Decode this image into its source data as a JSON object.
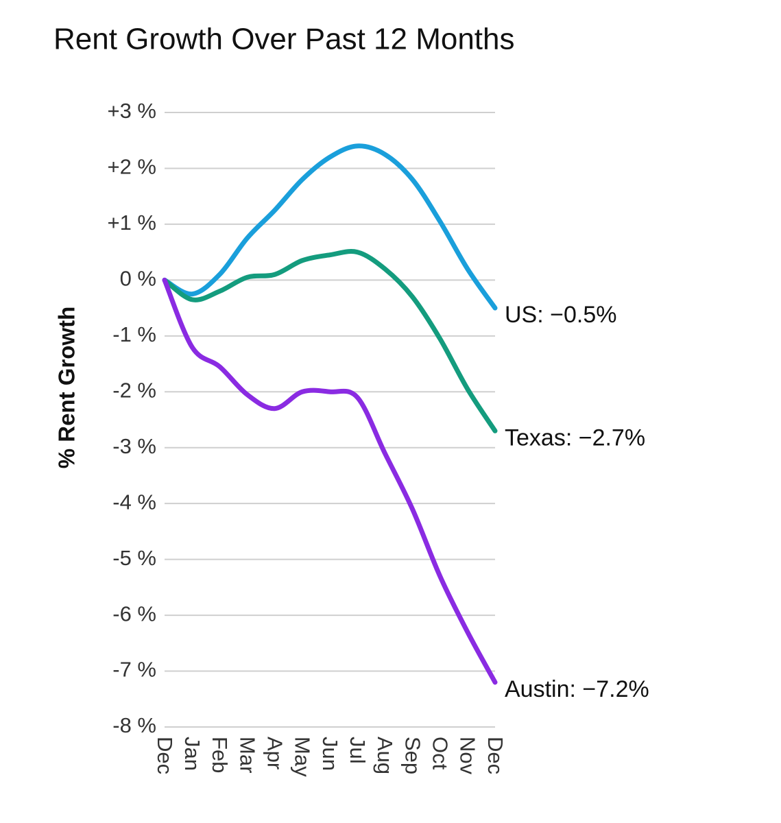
{
  "chart_data": {
    "type": "line",
    "title": "Rent Growth Over Past 12 Months",
    "y_label": "% Rent Growth",
    "categories": [
      "Dec",
      "Jan",
      "Feb",
      "Mar",
      "Apr",
      "May",
      "Jun",
      "Jul",
      "Aug",
      "Sep",
      "Oct",
      "Nov",
      "Dec"
    ],
    "series": [
      {
        "name": "US: −0.5%",
        "color": "#1a9fdb",
        "values": [
          0,
          -0.25,
          0.1,
          0.75,
          1.25,
          1.8,
          2.2,
          2.4,
          2.25,
          1.8,
          1.05,
          0.2,
          -0.5
        ]
      },
      {
        "name": "Texas: −2.7%",
        "color": "#149c7e",
        "values": [
          0,
          -0.35,
          -0.2,
          0.05,
          0.1,
          0.35,
          0.45,
          0.5,
          0.2,
          -0.3,
          -1.05,
          -1.95,
          -2.7
        ]
      },
      {
        "name": "Austin: −7.2%",
        "color": "#8a2be2",
        "values": [
          0,
          -1.2,
          -1.55,
          -2.05,
          -2.3,
          -2.0,
          -2.0,
          -2.1,
          -3.1,
          -4.1,
          -5.3,
          -6.3,
          -7.2
        ]
      }
    ],
    "ylim": [
      -8,
      3
    ],
    "yticks": [
      {
        "value": 3,
        "label": "+3 %"
      },
      {
        "value": 2,
        "label": "+2 %"
      },
      {
        "value": 1,
        "label": "+1 %"
      },
      {
        "value": 0,
        "label": "0 %"
      },
      {
        "value": -1,
        "label": "-1 %"
      },
      {
        "value": -2,
        "label": "-2 %"
      },
      {
        "value": -3,
        "label": "-3 %"
      },
      {
        "value": -4,
        "label": "-4 %"
      },
      {
        "value": -5,
        "label": "-5 %"
      },
      {
        "value": -6,
        "label": "-6 %"
      },
      {
        "value": -7,
        "label": "-7 %"
      },
      {
        "value": -8,
        "label": "-8 %"
      }
    ],
    "grid": true
  }
}
